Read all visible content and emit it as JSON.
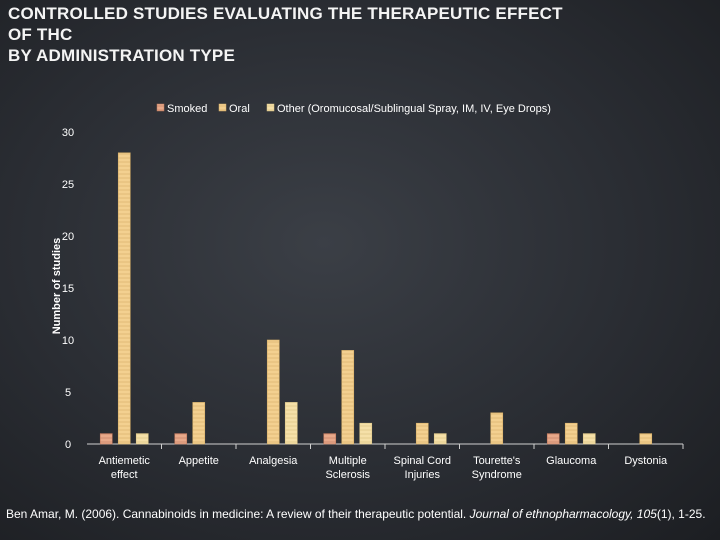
{
  "title_lines": [
    "CONTROLLED STUDIES EVALUATING THE THERAPEUTIC EFFECT",
    "OF THC",
    "BY ADMINISTRATION TYPE"
  ],
  "citation": {
    "authors": "Ben Amar, M. (2006). Cannabinoids in medicine: A review of their therapeutic potential. ",
    "journal": "Journal of ethnopharmacology, 105",
    "tail": "(1), 1-25."
  },
  "colors": {
    "smoked": "#e8a98a",
    "oral": "#f3d090",
    "other": "#f5e0a8"
  },
  "chart_data": {
    "type": "bar",
    "title": "CONTROLLED STUDIES EVALUATING THE THERAPEUTIC EFFECT OF THC BY ADMINISTRATION TYPE",
    "xlabel": "",
    "ylabel": "Number of studies",
    "ylim": [
      0,
      30
    ],
    "yticks": [
      0,
      5,
      10,
      15,
      20,
      25,
      30
    ],
    "grid": false,
    "legend": "top-center",
    "categories": [
      [
        "Antiemetic",
        "effect"
      ],
      [
        "Appetite"
      ],
      [
        "Analgesia"
      ],
      [
        "Multiple",
        "Sclerosis"
      ],
      [
        "Spinal Cord",
        "Injuries"
      ],
      [
        "Tourette's",
        "Syndrome"
      ],
      [
        "Glaucoma"
      ],
      [
        "Dystonia"
      ]
    ],
    "series": [
      {
        "name": "Smoked",
        "values": [
          1,
          1,
          0,
          1,
          0,
          0,
          1,
          0
        ]
      },
      {
        "name": "Oral",
        "values": [
          28,
          4,
          10,
          9,
          2,
          3,
          2,
          1
        ]
      },
      {
        "name": "Other (Oromucosal/Sublingual Spray, IM, IV, Eye Drops)",
        "values": [
          1,
          0,
          4,
          2,
          1,
          0,
          1,
          0
        ]
      }
    ]
  }
}
